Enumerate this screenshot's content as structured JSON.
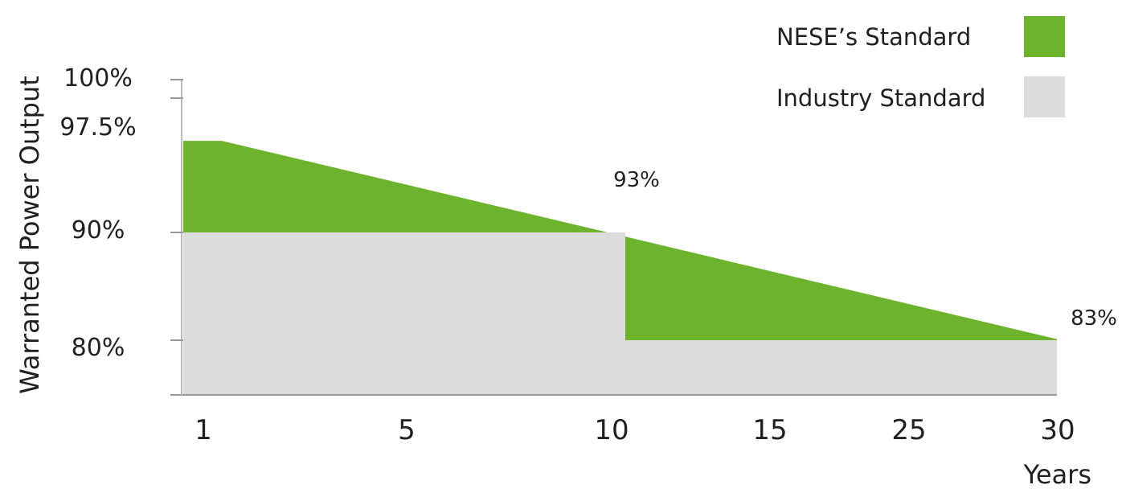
{
  "chart_data": {
    "type": "area",
    "ylabel": "Warranted Power Output",
    "xlabel": "Years",
    "x_categories": [
      "1",
      "5",
      "10",
      "15",
      "25",
      "30"
    ],
    "y_tick_labels": [
      {
        "label": "100%",
        "value": 100
      },
      {
        "label": "97.5%",
        "value": 97.5
      },
      {
        "label": "90%",
        "value": 90
      },
      {
        "label": "80%",
        "value": 80
      }
    ],
    "y_range": [
      75,
      100
    ],
    "series": [
      {
        "name": "NESE's Standard",
        "color": "#6db32e",
        "points": [
          {
            "x": 0.8,
            "y": 98.5
          },
          {
            "x": 1.0,
            "y": 98.5
          },
          {
            "x": 5.0,
            "y": 90.5
          },
          {
            "x": 30.0,
            "y": 80.1
          }
        ]
      },
      {
        "name": "Industry Standard",
        "color": "#dcdcdc",
        "points": [
          {
            "x": 0.8,
            "y": 90
          },
          {
            "x": 10.0,
            "y": 90
          },
          {
            "x": 10.0,
            "y": 80
          },
          {
            "x": 30.0,
            "y": 80
          }
        ]
      }
    ],
    "annotations": [
      {
        "text": "93%",
        "x": 10,
        "y": 93
      },
      {
        "text": "83%",
        "x": 30,
        "y": 83
      }
    ],
    "legend": {
      "placement": "top-right",
      "items": [
        {
          "label": "NESE’s Standard",
          "color": "#6db32e"
        },
        {
          "label": "Industry Standard",
          "color": "#dcdcdc"
        }
      ]
    },
    "grid": false
  }
}
